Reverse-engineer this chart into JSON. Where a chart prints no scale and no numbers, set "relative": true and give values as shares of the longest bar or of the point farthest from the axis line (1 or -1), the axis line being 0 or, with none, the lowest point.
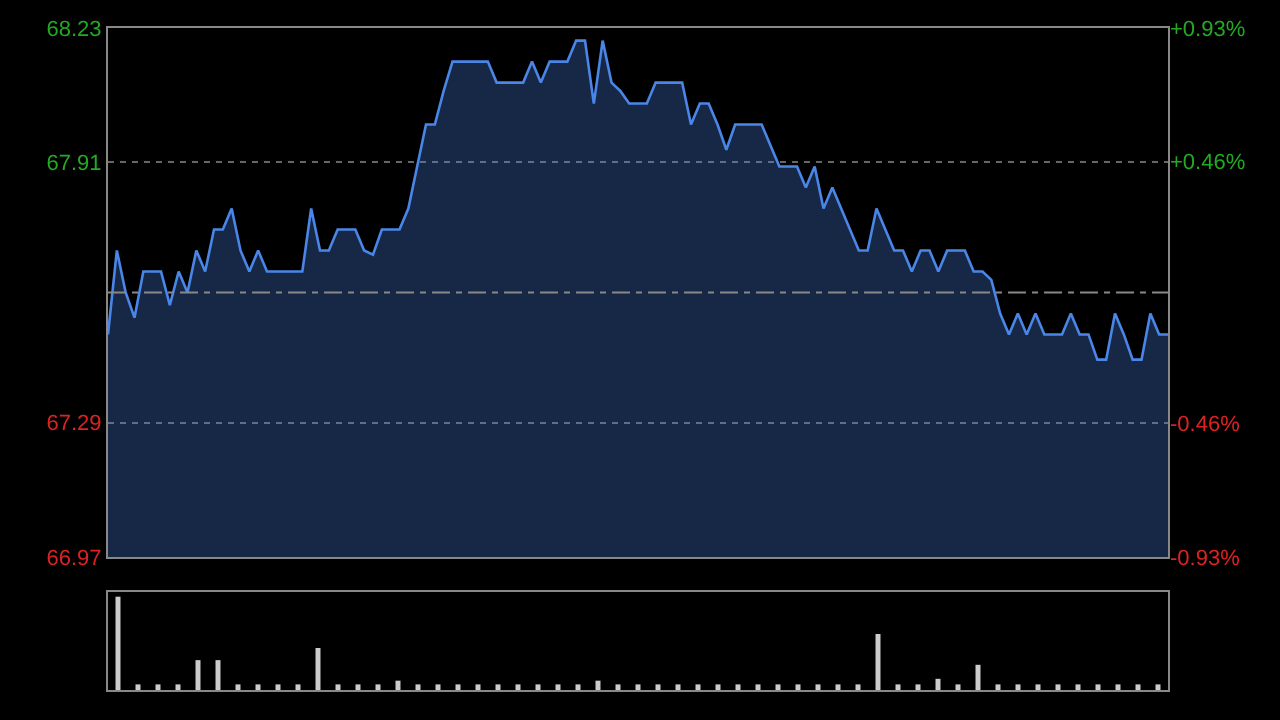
{
  "chart_data": [
    {
      "type": "area",
      "color": "#4a86e8",
      "categories": [
        null,
        null,
        null,
        null,
        null,
        null,
        null,
        null,
        null,
        null,
        null,
        null,
        null,
        null,
        null,
        null,
        null,
        null,
        null,
        null,
        null,
        null,
        null,
        null,
        null,
        null,
        null,
        null,
        null,
        null,
        null,
        null,
        null,
        null,
        null,
        null,
        null,
        null,
        null,
        null,
        null,
        null,
        null,
        null,
        null,
        null,
        null,
        null,
        null,
        null,
        null,
        null,
        null,
        null,
        null,
        null,
        null,
        null,
        null,
        null,
        null,
        null,
        null,
        null,
        null,
        null,
        null,
        null,
        null,
        null,
        null,
        null,
        null,
        null,
        null,
        null,
        null,
        null,
        null,
        null,
        null,
        null,
        null,
        null,
        null,
        null,
        null,
        null,
        null,
        null,
        null,
        null,
        null,
        null,
        null,
        null,
        null,
        null,
        null,
        null,
        null,
        null,
        null,
        null,
        null,
        null,
        null,
        null,
        null,
        null,
        null,
        null,
        null,
        null,
        null,
        null,
        null,
        null,
        null,
        null,
        null
      ],
      "values": [
        67.5,
        67.7,
        67.6,
        67.54,
        67.65,
        67.65,
        67.65,
        67.57,
        67.65,
        67.6,
        67.7,
        67.65,
        67.75,
        67.75,
        67.8,
        67.7,
        67.65,
        67.7,
        67.65,
        67.65,
        67.65,
        67.65,
        67.65,
        67.8,
        67.7,
        67.7,
        67.75,
        67.75,
        67.75,
        67.7,
        67.69,
        67.75,
        67.75,
        67.75,
        67.8,
        67.9,
        68.0,
        68.0,
        68.08,
        68.15,
        68.15,
        68.15,
        68.15,
        68.15,
        68.1,
        68.1,
        68.1,
        68.1,
        68.15,
        68.1,
        68.15,
        68.15,
        68.15,
        68.2,
        68.2,
        68.05,
        68.2,
        68.1,
        68.08,
        68.05,
        68.05,
        68.05,
        68.1,
        68.1,
        68.1,
        68.1,
        68.0,
        68.05,
        68.05,
        68.0,
        67.94,
        68.0,
        68.0,
        68.0,
        68.0,
        67.95,
        67.9,
        67.9,
        67.9,
        67.85,
        67.9,
        67.8,
        67.85,
        67.8,
        67.75,
        67.7,
        67.7,
        67.8,
        67.75,
        67.7,
        67.7,
        67.65,
        67.7,
        67.7,
        67.65,
        67.7,
        67.7,
        67.7,
        67.65,
        67.65,
        67.63,
        67.55,
        67.5,
        67.55,
        67.5,
        67.55,
        67.5,
        67.5,
        67.5,
        67.55,
        67.5,
        67.5,
        67.44,
        67.44,
        67.55,
        67.5,
        67.44,
        67.44,
        67.55,
        67.5,
        67.5
      ],
      "ylim": [
        66.97,
        68.23
      ],
      "yticks": [
        68.23,
        67.91,
        67.29,
        66.97
      ],
      "y2lim": [
        -0.93,
        0.93
      ],
      "y2ticks": [
        {
          "value": 0.93,
          "label": "+0.93%"
        },
        {
          "value": 0.46,
          "label": "+0.46%"
        },
        {
          "value": -0.46,
          "label": "-0.46%"
        },
        {
          "value": -0.93,
          "label": "-0.93%"
        }
      ],
      "ref_lines": [
        {
          "axis": "y",
          "value": 67.6,
          "label": null,
          "color": "#888888",
          "line_style": "dashdot"
        }
      ],
      "grid": "y",
      "tick_labels": "y"
    },
    {
      "type": "bar",
      "relative": true,
      "color": "#cccccc",
      "categories": [
        null,
        null,
        null,
        null,
        null,
        null,
        null,
        null,
        null,
        null,
        null,
        null,
        null,
        null,
        null,
        null,
        null,
        null,
        null,
        null,
        null,
        null,
        null,
        null,
        null,
        null,
        null,
        null,
        null,
        null,
        null,
        null,
        null,
        null,
        null,
        null,
        null,
        null,
        null,
        null,
        null,
        null,
        null,
        null,
        null,
        null,
        null,
        null,
        null,
        null,
        null,
        null,
        null
      ],
      "values": [
        1,
        0.06,
        0.06,
        0.06,
        0.32,
        0.32,
        0.06,
        0.06,
        0.06,
        0.06,
        0.45,
        0.06,
        0.06,
        0.06,
        0.1,
        0.06,
        0.06,
        0.06,
        0.06,
        0.06,
        0.06,
        0.06,
        0.06,
        0.06,
        0.1,
        0.06,
        0.06,
        0.06,
        0.06,
        0.06,
        0.06,
        0.06,
        0.06,
        0.06,
        0.06,
        0.06,
        0.06,
        0.06,
        0.6,
        0.06,
        0.06,
        0.12,
        0.06,
        0.27,
        0.06,
        0.06,
        0.06,
        0.06,
        0.06,
        0.06,
        0.06,
        0.06,
        0.06
      ],
      "tick_labels": false
    }
  ]
}
